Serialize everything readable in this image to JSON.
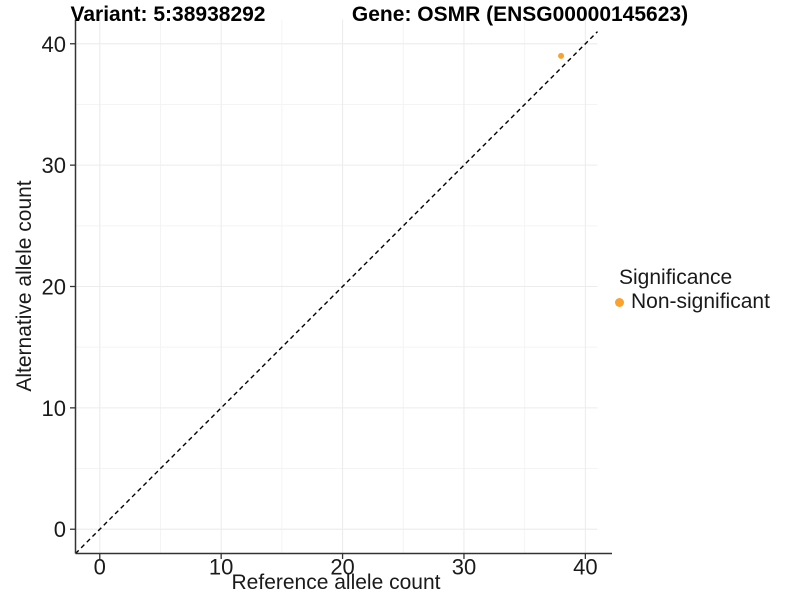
{
  "header": {
    "variant_title": "Variant: 5:38938292",
    "gene_title": "Gene: OSMR (ENSG00000145623)"
  },
  "axes": {
    "x_label": "Reference allele count",
    "y_label": "Alternative allele count"
  },
  "legend": {
    "title": "Significance",
    "items": [
      {
        "label": "Non-significant",
        "color": "#FBA22C"
      }
    ]
  },
  "colors": {
    "accent_orange": "#FBA22C",
    "axis_line": "#333333",
    "grid_major": "#ECECEC",
    "grid_minor": "#F4F4F4",
    "tick_text": "#1a1a1a",
    "reference_line": "#000000"
  },
  "chart_data": {
    "type": "scatter",
    "title": "Variant: 5:38938292 | Gene: OSMR (ENSG00000145623)",
    "xlabel": "Reference allele count",
    "ylabel": "Alternative allele count",
    "xlim": [
      -2,
      41
    ],
    "ylim": [
      -2,
      42
    ],
    "x_ticks": [
      0,
      10,
      20,
      30,
      40
    ],
    "y_ticks": [
      0,
      10,
      20,
      30,
      40
    ],
    "x_minor_ticks": [
      5,
      15,
      25,
      35
    ],
    "y_minor_ticks": [
      5,
      15,
      25,
      35
    ],
    "grid": true,
    "legend_position": "right",
    "legend_title": "Significance",
    "series": [
      {
        "name": "Non-significant",
        "color": "#FBA22C",
        "points": [
          {
            "x": 38,
            "y": 39
          }
        ]
      }
    ],
    "reference_line": {
      "type": "identity",
      "slope": 1,
      "intercept": 0,
      "style": "dashed",
      "color": "#000000"
    }
  }
}
